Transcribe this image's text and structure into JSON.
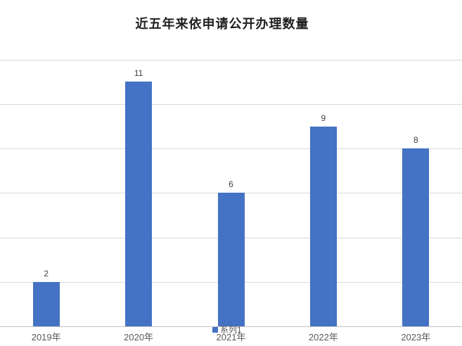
{
  "chart_data": {
    "type": "bar",
    "title": "近五年来依申请公开办理数量",
    "categories": [
      "2019年",
      "2020年",
      "2021年",
      "2022年",
      "2023年"
    ],
    "series": [
      {
        "name": "系列1",
        "values": [
          2,
          11,
          6,
          9,
          8
        ]
      }
    ],
    "ylim": [
      0,
      12
    ],
    "gridline_step": 2,
    "grid": true,
    "y_axis_labels_visible": false,
    "data_labels_visible": true,
    "legend_position": "bottom-center"
  },
  "colors": {
    "bar": "#4472c4",
    "gridline": "#d9d9d9",
    "axis_line": "#c3c3c3",
    "title_text": "#1f1f1f",
    "data_label_text": "#404040",
    "axis_label_text": "#595959",
    "background": "#ffffff"
  }
}
